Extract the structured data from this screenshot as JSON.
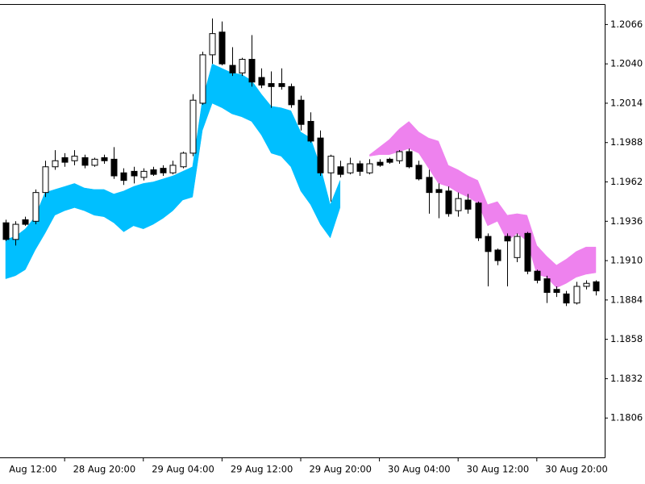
{
  "chart_data": {
    "type": "candlestick",
    "open": [
      1.1935,
      1.1924,
      1.1937,
      1.1936,
      1.1955,
      1.1972,
      1.1978,
      1.1976,
      1.1978,
      1.1973,
      1.1978,
      1.1977,
      1.1968,
      1.1969,
      1.1965,
      1.197,
      1.1971,
      1.1968,
      1.1972,
      1.1981,
      1.2014,
      1.2046,
      1.2061,
      1.2039,
      1.2034,
      1.2043,
      1.2031,
      1.2027,
      1.2027,
      1.2025,
      1.2016,
      1.2002,
      1.1991,
      1.1968,
      1.1972,
      1.1968,
      1.1974,
      1.1968,
      1.1975,
      1.1977,
      1.1976,
      1.1982,
      1.1973,
      1.1965,
      1.1957,
      1.1956,
      1.1943,
      1.195,
      1.1948,
      1.1926,
      1.1917,
      1.1926,
      1.1912,
      1.1928,
      1.1903,
      1.1898,
      1.1891,
      1.1888,
      1.1882,
      1.1893,
      1.1896
    ],
    "high": [
      1.1937,
      1.1936,
      1.1939,
      1.1957,
      1.1976,
      1.1983,
      1.1981,
      1.1983,
      1.198,
      1.1978,
      1.198,
      1.1985,
      1.1971,
      1.1972,
      1.1971,
      1.1972,
      1.1973,
      1.1976,
      1.1982,
      1.202,
      1.2048,
      1.207,
      1.2068,
      1.2051,
      1.2044,
      1.2059,
      1.2037,
      1.2035,
      1.2037,
      1.2027,
      1.2019,
      1.2008,
      1.1996,
      1.198,
      1.1976,
      1.1978,
      1.1976,
      1.1977,
      1.1977,
      1.1978,
      1.1983,
      1.1984,
      1.1976,
      1.197,
      1.1961,
      1.1959,
      1.1955,
      1.1954,
      1.1949,
      1.1928,
      1.1918,
      1.1928,
      1.1928,
      1.1929,
      1.1904,
      1.19,
      1.1893,
      1.189,
      1.1896,
      1.1897,
      1.1897
    ],
    "low": [
      1.1923,
      1.192,
      1.1933,
      1.1934,
      1.1952,
      1.197,
      1.1972,
      1.1973,
      1.1971,
      1.1972,
      1.1974,
      1.1964,
      1.196,
      1.1961,
      1.1963,
      1.1966,
      1.1966,
      1.1967,
      1.1971,
      1.1979,
      1.2013,
      1.204,
      1.2039,
      1.2032,
      1.2032,
      1.2025,
      1.2024,
      1.2011,
      1.2023,
      1.2011,
      1.1996,
      1.1988,
      1.1966,
      1.1949,
      1.1965,
      1.1967,
      1.1966,
      1.1967,
      1.1972,
      1.1974,
      1.1974,
      1.1971,
      1.1963,
      1.1941,
      1.1938,
      1.1939,
      1.1939,
      1.1941,
      1.1923,
      1.1893,
      1.1907,
      1.1893,
      1.1909,
      1.1901,
      1.1895,
      1.1882,
      1.1886,
      1.188,
      1.1881,
      1.1891,
      1.1887
    ],
    "close": [
      1.1924,
      1.1934,
      1.1934,
      1.1955,
      1.1972,
      1.1976,
      1.1975,
      1.1979,
      1.1973,
      1.1977,
      1.1976,
      1.1966,
      1.1963,
      1.1966,
      1.1969,
      1.1967,
      1.1968,
      1.1973,
      1.1981,
      1.2016,
      1.2046,
      1.206,
      1.204,
      1.2034,
      1.2043,
      1.2028,
      1.2026,
      1.2025,
      1.2025,
      1.2013,
      1.2,
      1.1989,
      1.1968,
      1.1979,
      1.1967,
      1.1974,
      1.1969,
      1.1974,
      1.1973,
      1.1975,
      1.1982,
      1.1972,
      1.1964,
      1.1955,
      1.1955,
      1.1941,
      1.1951,
      1.1944,
      1.1925,
      1.1916,
      1.191,
      1.1923,
      1.1926,
      1.1903,
      1.1897,
      1.1889,
      1.1889,
      1.1882,
      1.1893,
      1.1895,
      1.189
    ],
    "up_color": "#ffffff",
    "down_color": "#000000",
    "wick_color": "#000000",
    "bands": [
      {
        "color": "#00bfff",
        "upper": [
          1.1924,
          1.1926,
          1.1931,
          1.1939,
          1.1955,
          1.1957,
          1.1959,
          1.1961,
          1.1958,
          1.1957,
          1.1957,
          1.1954,
          1.1956,
          1.1959,
          1.1961,
          1.1962,
          1.1964,
          1.1966,
          1.1969,
          1.1972,
          1.2016,
          1.204,
          1.2037,
          1.2034,
          1.2033,
          1.2029,
          1.202,
          1.2012,
          1.2011,
          1.2009,
          1.1995,
          1.1991,
          1.1972,
          1.1947,
          1.1963,
          null,
          null,
          null,
          null,
          null,
          null,
          null,
          null,
          null,
          null,
          null,
          null,
          null,
          null,
          null,
          null,
          null,
          null,
          null,
          null,
          null,
          null,
          null,
          null,
          null,
          null
        ],
        "lower": [
          1.1898,
          1.19,
          1.1904,
          1.1917,
          1.1928,
          1.194,
          1.1943,
          1.1945,
          1.1943,
          1.194,
          1.1939,
          1.1935,
          1.1929,
          1.1933,
          1.1931,
          1.1934,
          1.1938,
          1.1943,
          1.195,
          1.1952,
          1.1996,
          1.2014,
          1.2011,
          1.2007,
          1.2005,
          1.2002,
          1.1993,
          1.1981,
          1.1979,
          1.1972,
          1.1956,
          1.1947,
          1.1934,
          1.1925,
          1.1945,
          null,
          null,
          null,
          null,
          null,
          null,
          null,
          null,
          null,
          null,
          null,
          null,
          null,
          null,
          null,
          null,
          null,
          null,
          null,
          null,
          null,
          null,
          null,
          null,
          null,
          null
        ]
      },
      {
        "color": "#ee82ee",
        "upper": [
          null,
          null,
          null,
          null,
          null,
          null,
          null,
          null,
          null,
          null,
          null,
          null,
          null,
          null,
          null,
          null,
          null,
          null,
          null,
          null,
          null,
          null,
          null,
          null,
          null,
          null,
          null,
          null,
          null,
          null,
          null,
          null,
          null,
          null,
          null,
          null,
          null,
          1.198,
          1.1985,
          1.199,
          1.1997,
          1.2002,
          1.1995,
          1.1991,
          1.1989,
          1.1973,
          1.197,
          1.1966,
          1.1963,
          1.1947,
          1.1949,
          1.194,
          1.1941,
          1.194,
          1.192,
          1.1913,
          1.1907,
          1.1911,
          1.1916,
          1.1919,
          1.1919
        ],
        "lower": [
          null,
          null,
          null,
          null,
          null,
          null,
          null,
          null,
          null,
          null,
          null,
          null,
          null,
          null,
          null,
          null,
          null,
          null,
          null,
          null,
          null,
          null,
          null,
          null,
          null,
          null,
          null,
          null,
          null,
          null,
          null,
          null,
          null,
          null,
          null,
          null,
          null,
          1.1979,
          1.198,
          1.198,
          1.1982,
          1.1984,
          1.1981,
          1.1971,
          1.1961,
          1.1959,
          1.1955,
          1.1952,
          1.1948,
          1.1933,
          1.1936,
          1.1923,
          1.1928,
          1.1923,
          1.1901,
          1.1899,
          1.1892,
          1.1895,
          1.1899,
          1.1901,
          1.1902
        ]
      }
    ],
    "xlim": [
      -0.57,
      60.9
    ],
    "xticks": [
      {
        "value": -2,
        "label": "Aug 12:00"
      },
      {
        "value": 6,
        "label": "28 Aug 20:00"
      },
      {
        "value": 14,
        "label": "29 Aug 04:00"
      },
      {
        "value": 22,
        "label": "29 Aug 12:00"
      },
      {
        "value": 30,
        "label": "29 Aug 20:00"
      },
      {
        "value": 38,
        "label": "30 Aug 04:00"
      },
      {
        "value": 46,
        "label": "30 Aug 12:00"
      },
      {
        "value": 54,
        "label": "30 Aug 20:00"
      }
    ],
    "ylim": [
      1.178,
      1.2079
    ],
    "yticks": [
      1.2066,
      {
        "value": 1.204,
        "label": "1.2040"
      },
      1.2014,
      1.1988,
      1.1962,
      1.1936,
      {
        "value": 1.191,
        "label": "1.1910"
      },
      1.1884,
      1.1858,
      1.1832,
      1.1806
    ]
  }
}
